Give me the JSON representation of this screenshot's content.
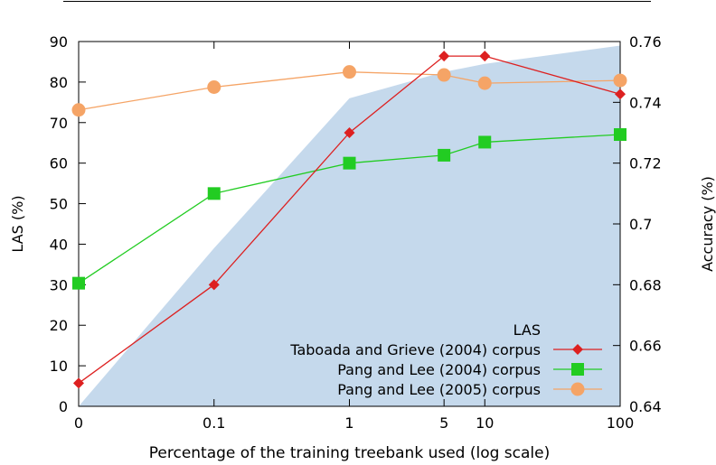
{
  "chart_data": {
    "type": "line",
    "xlabel": "Percentage of the training treebank used (log scale)",
    "ylabel_left": "LAS (%)",
    "ylabel_right": "Accuracy (%)",
    "x_scale": "log",
    "x_ticks": [
      {
        "value": 0,
        "label": "0"
      },
      {
        "value": 0.1,
        "label": "0.1"
      },
      {
        "value": 1,
        "label": "1"
      },
      {
        "value": 5,
        "label": "5"
      },
      {
        "value": 10,
        "label": "10"
      },
      {
        "value": 100,
        "label": "100"
      }
    ],
    "y_left_ticks": [
      "0",
      "10",
      "20",
      "30",
      "40",
      "50",
      "60",
      "70",
      "80",
      "90"
    ],
    "y_left_range": [
      0,
      90
    ],
    "y_right_ticks": [
      "0.64",
      "0.66",
      "0.68",
      "0.7",
      "0.72",
      "0.74",
      "0.76"
    ],
    "y_right_range": [
      0.64,
      0.76
    ],
    "legend_position": "bottom-right",
    "series": [
      {
        "name": "LAS",
        "kind": "area",
        "axis": "left",
        "color": "#c5d9ec",
        "points": [
          {
            "x": 0,
            "y": 0
          },
          {
            "x": 0.1,
            "y": 39
          },
          {
            "x": 1,
            "y": 76
          },
          {
            "x": 5,
            "y": 82.5
          },
          {
            "x": 10,
            "y": 84.5
          },
          {
            "x": 100,
            "y": 89
          }
        ]
      },
      {
        "name": "Taboada and Grieve (2004) corpus",
        "kind": "line",
        "axis": "right",
        "marker": "diamond",
        "color": "#dd2020",
        "points": [
          {
            "x": 0,
            "y": 0.6476
          },
          {
            "x": 0.1,
            "y": 0.68
          },
          {
            "x": 1,
            "y": 0.73
          },
          {
            "x": 5,
            "y": 0.7552
          },
          {
            "x": 10,
            "y": 0.7552
          },
          {
            "x": 100,
            "y": 0.7427
          }
        ]
      },
      {
        "name": "Pang and Lee (2004) corpus",
        "kind": "line",
        "axis": "right",
        "marker": "square",
        "color": "#22cc22",
        "points": [
          {
            "x": 0,
            "y": 0.6805
          },
          {
            "x": 0.1,
            "y": 0.71
          },
          {
            "x": 1,
            "y": 0.72
          },
          {
            "x": 5,
            "y": 0.7226
          },
          {
            "x": 10,
            "y": 0.7269
          },
          {
            "x": 100,
            "y": 0.7294
          }
        ]
      },
      {
        "name": "Pang and Lee (2005) corpus",
        "kind": "line",
        "axis": "right",
        "marker": "circle",
        "color": "#f5a466",
        "points": [
          {
            "x": 0,
            "y": 0.7375
          },
          {
            "x": 0.1,
            "y": 0.745
          },
          {
            "x": 1,
            "y": 0.75
          },
          {
            "x": 5,
            "y": 0.749
          },
          {
            "x": 10,
            "y": 0.7463
          },
          {
            "x": 100,
            "y": 0.7472
          }
        ]
      }
    ]
  }
}
